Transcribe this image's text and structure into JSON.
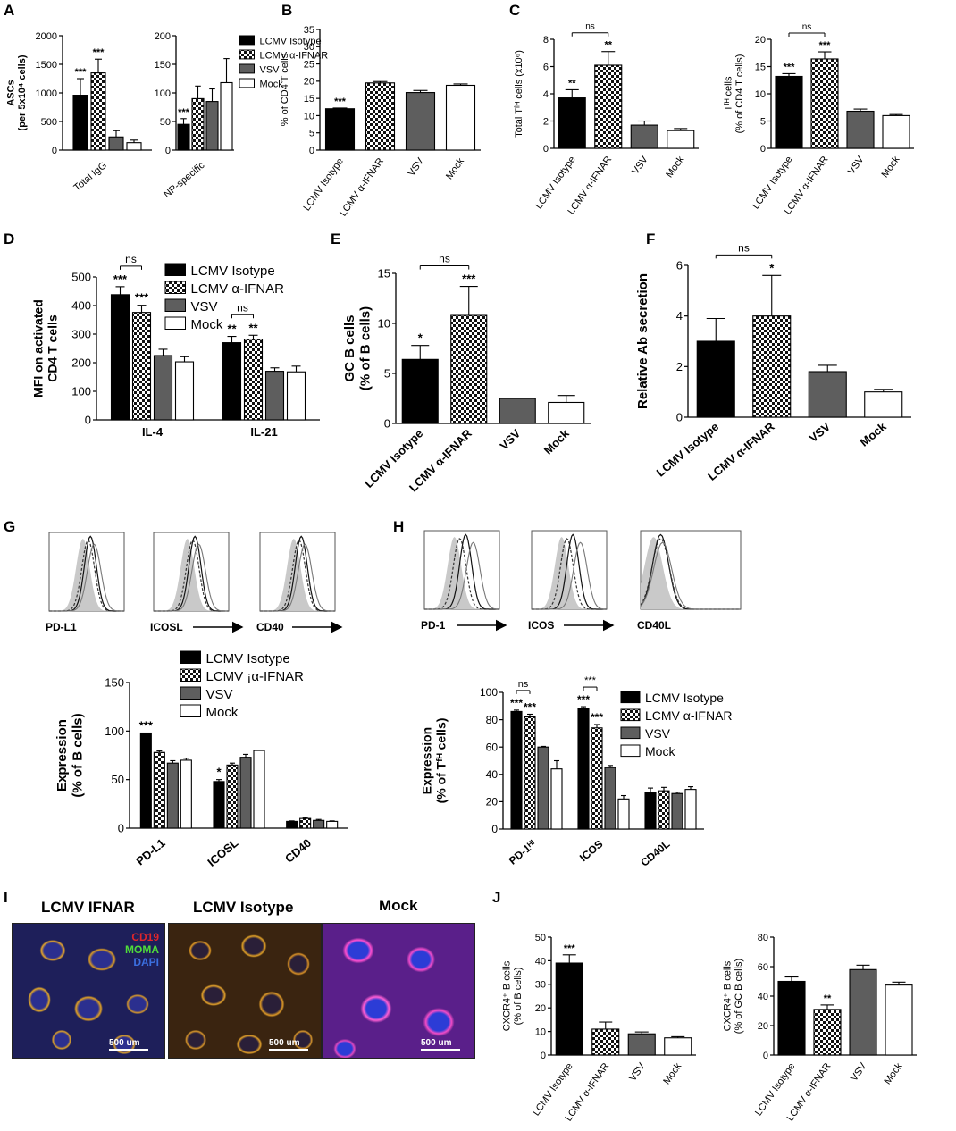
{
  "panel_labels": [
    "A",
    "B",
    "C",
    "D",
    "E",
    "F",
    "G",
    "H",
    "I",
    "J"
  ],
  "legend_groups": [
    "LCMV Isotype",
    "LCMV α-IFNAR",
    "VSV",
    "Mock"
  ],
  "colors": {
    "black": "#000000",
    "checker": "#9a9a9a",
    "gray": "#5e5e5e",
    "white": "#ffffff",
    "histo_fill": "#c9c9c9"
  },
  "chart_data": [
    {
      "id": "A1",
      "type": "bar",
      "ylabel": "ASCs",
      "ylabel2": "(per 5x10⁴ cells)",
      "ylim": [
        0,
        2000
      ],
      "yticks": [
        "0",
        "500",
        "1000",
        "1500",
        "2000"
      ],
      "categories": [
        "Total IgG"
      ],
      "values": [
        [
          960,
          1350,
          230,
          130
        ]
      ],
      "errors": [
        [
          290,
          240,
          110,
          45
        ]
      ],
      "stars": [
        [
          "***",
          "***",
          "",
          ""
        ]
      ]
    },
    {
      "id": "A2",
      "type": "bar",
      "ylim": [
        0,
        200
      ],
      "yticks": [
        "0",
        "50",
        "100",
        "150",
        "200"
      ],
      "categories": [
        "NP-specific"
      ],
      "values": [
        [
          45,
          90,
          85,
          118
        ]
      ],
      "errors": [
        [
          10,
          22,
          22,
          42
        ]
      ],
      "stars": [
        [
          "***",
          "",
          "",
          ""
        ]
      ],
      "legend": [
        "LCMV Isotype",
        "LCMV α-IFNAR",
        "VSV",
        "Mock"
      ]
    },
    {
      "id": "B",
      "type": "bar",
      "ylabel": "% of CD4 T cells",
      "ylim": [
        0,
        35
      ],
      "yticks": [
        "0",
        "5",
        "10",
        "15",
        "20",
        "25",
        "30",
        "35"
      ],
      "categories": [
        "LCMV Isotype",
        "LCMV α-IFNAR",
        "VSV",
        "Mock"
      ],
      "values": [
        12,
        19.5,
        16.7,
        18.8
      ],
      "errors": [
        0.2,
        0.4,
        0.6,
        0.4
      ],
      "stars": [
        "***",
        "",
        "",
        ""
      ]
    },
    {
      "id": "C1",
      "type": "bar",
      "ylabel": "Total Tᶠᴴ cells (x10⁶)",
      "ylim": [
        0,
        8
      ],
      "yticks": [
        "0",
        "2",
        "4",
        "6",
        "8"
      ],
      "categories": [
        "LCMV Isotype",
        "LCMV α-IFNAR",
        "VSV",
        "Mock"
      ],
      "values": [
        3.7,
        6.1,
        1.7,
        1.3
      ],
      "errors": [
        0.6,
        1.0,
        0.3,
        0.15
      ],
      "stars": [
        "**",
        "**",
        "",
        ""
      ],
      "brackets": [
        {
          "from": 0,
          "to": 1,
          "text": "ns"
        }
      ]
    },
    {
      "id": "C2",
      "type": "bar",
      "ylabel": "Tᶠᴴ cells",
      "ylabel2": "(% of CD4 T cells)",
      "ylim": [
        0,
        20
      ],
      "yticks": [
        "0",
        "5",
        "10",
        "15",
        "20"
      ],
      "categories": [
        "LCMV Isotype",
        "LCMV α-IFNAR",
        "VSV",
        "Mock"
      ],
      "values": [
        13.2,
        16.4,
        6.8,
        6.0
      ],
      "errors": [
        0.5,
        1.3,
        0.4,
        0.2
      ],
      "stars": [
        "***",
        "***",
        "",
        ""
      ],
      "brackets": [
        {
          "from": 0,
          "to": 1,
          "text": "ns"
        }
      ]
    },
    {
      "id": "D",
      "type": "bar",
      "ylabel": "MFI on activated",
      "ylabel2": "CD4 T cells",
      "ylim": [
        0,
        500
      ],
      "yticks": [
        "0",
        "100",
        "200",
        "300",
        "400",
        "500"
      ],
      "categories": [
        "IL-4",
        "IL-21"
      ],
      "values": [
        [
          438,
          376,
          225,
          203
        ],
        [
          270,
          282,
          170,
          168
        ]
      ],
      "errors": [
        [
          28,
          25,
          22,
          18
        ],
        [
          22,
          14,
          12,
          20
        ]
      ],
      "stars": [
        [
          "***",
          "***",
          "",
          ""
        ],
        [
          "**",
          "**",
          "",
          ""
        ]
      ],
      "brackets": [
        {
          "group": 0,
          "from": 0,
          "to": 1,
          "text": "ns"
        },
        {
          "group": 1,
          "from": 0,
          "to": 1,
          "text": "ns"
        }
      ],
      "legend": [
        "LCMV Isotype",
        "LCMV α-IFNAR",
        "VSV",
        "Mock"
      ]
    },
    {
      "id": "E",
      "type": "bar",
      "ylabel": "GC B cells",
      "ylabel2": "(% of B cells)",
      "ylim": [
        0,
        15
      ],
      "yticks": [
        "0",
        "5",
        "10",
        "15"
      ],
      "categories": [
        "LCMV Isotype",
        "LCMV α-IFNAR",
        "VSV",
        "Mock"
      ],
      "values": [
        6.4,
        10.8,
        2.5,
        2.1
      ],
      "errors": [
        1.4,
        2.9,
        0,
        0.7
      ],
      "stars": [
        "*",
        "***",
        "",
        ""
      ],
      "brackets": [
        {
          "from": 0,
          "to": 1,
          "text": "ns"
        }
      ]
    },
    {
      "id": "F",
      "type": "bar",
      "ylabel": "Relative Ab secretion",
      "ylim": [
        0,
        6
      ],
      "yticks": [
        "0",
        "2",
        "4",
        "6"
      ],
      "categories": [
        "LCMV Isotype",
        "LCMV α-IFNAR",
        "VSV",
        "Mock"
      ],
      "values": [
        3.0,
        4.0,
        1.8,
        1.0
      ],
      "errors": [
        0.9,
        1.6,
        0.25,
        0.1
      ],
      "stars": [
        "",
        "*",
        "",
        ""
      ],
      "brackets": [
        {
          "from": 0,
          "to": 1,
          "text": "ns"
        }
      ]
    },
    {
      "id": "G",
      "type": "bar",
      "ylabel": "Expression",
      "ylabel2": "(% of B cells)",
      "ylim": [
        0,
        150
      ],
      "yticks": [
        "0",
        "50",
        "100",
        "150"
      ],
      "categories": [
        "PD-L1",
        "ICOSL",
        "CD40"
      ],
      "values": [
        [
          98,
          78,
          67,
          70
        ],
        [
          48,
          65,
          73,
          80
        ],
        [
          7,
          10,
          8,
          7
        ]
      ],
      "errors": [
        [
          0,
          1.5,
          2.5,
          2
        ],
        [
          2,
          2,
          3,
          0
        ],
        [
          0.5,
          1,
          1,
          0.5
        ]
      ],
      "stars": [
        [
          "***",
          "",
          "",
          ""
        ],
        [
          "*",
          "",
          "",
          ""
        ],
        [
          "",
          "",
          "",
          ""
        ]
      ],
      "legend": [
        "LCMV Isotype",
        "LCMV ¡α-IFNAR",
        "VSV",
        "Mock"
      ]
    },
    {
      "id": "H",
      "type": "bar",
      "ylabel": "Expression",
      "ylabel2": "(% of Tᶠᴴ cells)",
      "ylim": [
        0,
        100
      ],
      "yticks": [
        "0",
        "20",
        "40",
        "60",
        "80",
        "100"
      ],
      "categories": [
        "PD-1ᴴᴵ",
        "ICOS",
        "CD40L"
      ],
      "values": [
        [
          86,
          82,
          60,
          44
        ],
        [
          88,
          74,
          45,
          22
        ],
        [
          27,
          28,
          26,
          29
        ]
      ],
      "errors": [
        [
          1,
          2,
          0.5,
          6
        ],
        [
          1.5,
          2.5,
          1.5,
          2.5
        ],
        [
          3,
          2.5,
          1,
          2
        ]
      ],
      "stars": [
        [
          "***",
          "***",
          "",
          ""
        ],
        [
          "***",
          "***",
          "",
          ""
        ],
        [
          "",
          "",
          "",
          ""
        ]
      ],
      "brackets": [
        {
          "group": 0,
          "from": 0,
          "to": 1,
          "text": "ns"
        },
        {
          "group": 1,
          "from": 0,
          "to": 1,
          "text": "***"
        }
      ],
      "legend": [
        "LCMV Isotype",
        "LCMV α-IFNAR",
        "VSV",
        "Mock"
      ]
    },
    {
      "id": "J1",
      "type": "bar",
      "ylabel": "CXCR4⁺ B cells",
      "ylabel2": "(% of B cells)",
      "ylim": [
        0,
        50
      ],
      "yticks": [
        "0",
        "10",
        "20",
        "30",
        "40",
        "50"
      ],
      "categories": [
        "LCMV Isotype",
        "LCMV α-IFNAR",
        "VSV",
        "Mock"
      ],
      "values": [
        39,
        11,
        9,
        7.3
      ],
      "errors": [
        3.5,
        3,
        0.8,
        0.5
      ],
      "stars": [
        "***",
        "",
        "",
        ""
      ]
    },
    {
      "id": "J2",
      "type": "bar",
      "ylabel": "CXCR4⁺ B cells",
      "ylabel2": "(% of GC B cells)",
      "ylim": [
        0,
        80
      ],
      "yticks": [
        "0",
        "20",
        "40",
        "60",
        "80"
      ],
      "categories": [
        "LCMV Isotype",
        "LCMV α-IFNAR",
        "VSV",
        "Mock"
      ],
      "values": [
        50,
        31,
        58,
        47.5
      ],
      "errors": [
        3,
        3,
        3,
        2
      ],
      "stars": [
        "",
        "**",
        "",
        ""
      ]
    }
  ],
  "histograms": {
    "G": [
      {
        "marker": "PD-L1",
        "arrow": false
      },
      {
        "marker": "ICOSL",
        "arrow": true
      },
      {
        "marker": "CD40",
        "arrow": true
      }
    ],
    "H": [
      {
        "marker": "PD-1",
        "arrow": true
      },
      {
        "marker": "ICOS",
        "arrow": true
      },
      {
        "marker": "CD40L",
        "arrow": false
      }
    ]
  },
  "micrographs": {
    "titles": [
      "LCMV IFNAR",
      "LCMV Isotype",
      "Mock"
    ],
    "legend": [
      {
        "text": "CD19",
        "color": "#e0262a"
      },
      {
        "text": "MOMA",
        "color": "#4fdc3a"
      },
      {
        "text": "DAPI",
        "color": "#3b6fe0"
      }
    ],
    "scale": "500 um"
  }
}
